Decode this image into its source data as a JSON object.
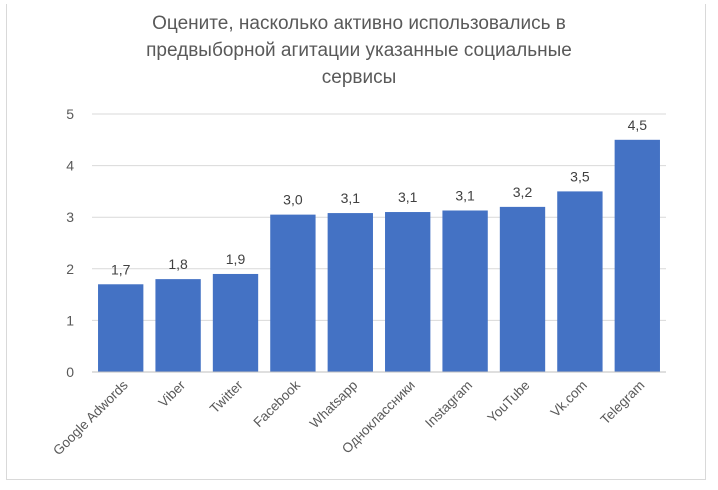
{
  "chart_data": {
    "type": "bar",
    "title_lines": [
      "Оцените, насколько активно использовались в",
      "предвыборной агитации указанные социальные",
      "сервисы"
    ],
    "categories": [
      "Google Adwords",
      "Viber",
      "Twitter",
      "Facebook",
      "Whatsapp",
      "Одноклассники",
      "Instagram",
      "YouTube",
      "Vk.com",
      "Telegram"
    ],
    "values": [
      1.7,
      1.8,
      1.9,
      3.05,
      3.08,
      3.1,
      3.13,
      3.2,
      3.5,
      4.5
    ],
    "data_labels": [
      "1,7",
      "1,8",
      "1,9",
      "3,0",
      "3,1",
      "3,1",
      "3,1",
      "3,2",
      "3,5",
      "4,5"
    ],
    "yticks": [
      "0",
      "1",
      "2",
      "3",
      "4",
      "5"
    ],
    "ylim": [
      0,
      5
    ],
    "grid": true,
    "bar_color": "#4472c4",
    "grid_color": "#d9d9d9"
  }
}
